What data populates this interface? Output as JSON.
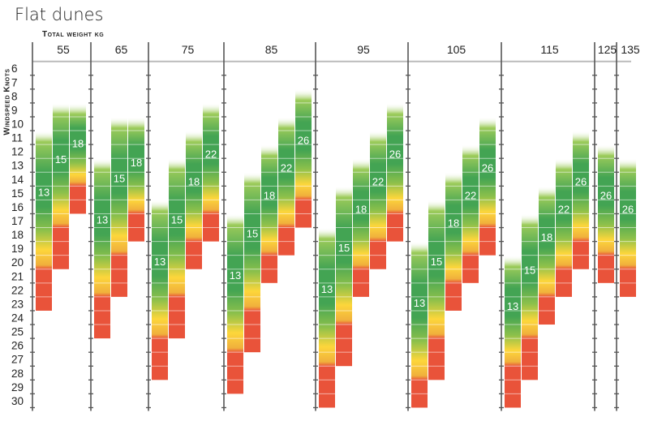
{
  "chart_data": {
    "type": "bar",
    "title": "Flat dunes",
    "xlabel": "Total weight kg",
    "ylabel": "Windspeed Knots",
    "y_ticks": [
      6,
      7,
      8,
      9,
      10,
      11,
      12,
      13,
      14,
      15,
      16,
      17,
      18,
      19,
      20,
      21,
      22,
      23,
      24,
      25,
      26,
      27,
      28,
      29,
      30
    ],
    "ylim": [
      6,
      30
    ],
    "y_inverted": true,
    "grid": false,
    "colors": {
      "fade": "#9ccb5a",
      "green": "#43a453",
      "light_green": "#8cc04b",
      "yellow": "#fdd63b",
      "orange": "#f0b03c",
      "red": "#e9533a"
    },
    "groups": [
      {
        "weight": "55",
        "kites": [
          {
            "size": "13",
            "from": 11,
            "to": 23,
            "red_from": 21
          },
          {
            "size": "15",
            "from": 9,
            "to": 20,
            "red_from": 18
          },
          {
            "size": "18",
            "from": 9,
            "to": 16,
            "red_from": 15
          }
        ]
      },
      {
        "weight": "65",
        "kites": [
          {
            "size": "13",
            "from": 13,
            "to": 25,
            "red_from": 23
          },
          {
            "size": "15",
            "from": 10,
            "to": 22,
            "red_from": 20
          },
          {
            "size": "18",
            "from": 10,
            "to": 18,
            "red_from": 17
          }
        ]
      },
      {
        "weight": "75",
        "kites": [
          {
            "size": "13",
            "from": 16,
            "to": 28,
            "red_from": 26
          },
          {
            "size": "15",
            "from": 13,
            "to": 25,
            "red_from": 23
          },
          {
            "size": "18",
            "from": 11,
            "to": 20,
            "red_from": 19
          },
          {
            "size": "22",
            "from": 9,
            "to": 18,
            "red_from": 17
          }
        ]
      },
      {
        "weight": "85",
        "kites": [
          {
            "size": "13",
            "from": 17,
            "to": 29,
            "red_from": 27
          },
          {
            "size": "15",
            "from": 14,
            "to": 26,
            "red_from": 24
          },
          {
            "size": "18",
            "from": 12,
            "to": 21,
            "red_from": 20
          },
          {
            "size": "22",
            "from": 10,
            "to": 19,
            "red_from": 18
          },
          {
            "size": "26",
            "from": 8,
            "to": 17,
            "red_from": 16
          }
        ]
      },
      {
        "weight": "95",
        "kites": [
          {
            "size": "13",
            "from": 18,
            "to": 30,
            "red_from": 28
          },
          {
            "size": "15",
            "from": 15,
            "to": 27,
            "red_from": 25
          },
          {
            "size": "18",
            "from": 13,
            "to": 22,
            "red_from": 21
          },
          {
            "size": "22",
            "from": 11,
            "to": 20,
            "red_from": 19
          },
          {
            "size": "26",
            "from": 9,
            "to": 18,
            "red_from": 17
          }
        ]
      },
      {
        "weight": "105",
        "kites": [
          {
            "size": "13",
            "from": 19,
            "to": 30,
            "red_from": 29
          },
          {
            "size": "15",
            "from": 16,
            "to": 28,
            "red_from": 26
          },
          {
            "size": "18",
            "from": 14,
            "to": 23,
            "red_from": 22
          },
          {
            "size": "22",
            "from": 12,
            "to": 21,
            "red_from": 20
          },
          {
            "size": "26",
            "from": 10,
            "to": 19,
            "red_from": 18
          }
        ]
      },
      {
        "weight": "115",
        "kites": [
          {
            "size": "13",
            "from": 20,
            "to": 30,
            "red_from": 28
          },
          {
            "size": "15",
            "from": 17,
            "to": 28,
            "red_from": 26
          },
          {
            "size": "18",
            "from": 15,
            "to": 24,
            "red_from": 23
          },
          {
            "size": "22",
            "from": 13,
            "to": 22,
            "red_from": 21
          },
          {
            "size": "26",
            "from": 11,
            "to": 20,
            "red_from": 19
          }
        ]
      },
      {
        "weight": "125",
        "kites": [
          {
            "size": "26",
            "from": 12,
            "to": 21,
            "red_from": 20
          }
        ]
      },
      {
        "weight": "135",
        "kites": [
          {
            "size": "26",
            "from": 13,
            "to": 22,
            "red_from": 21
          }
        ]
      }
    ]
  }
}
